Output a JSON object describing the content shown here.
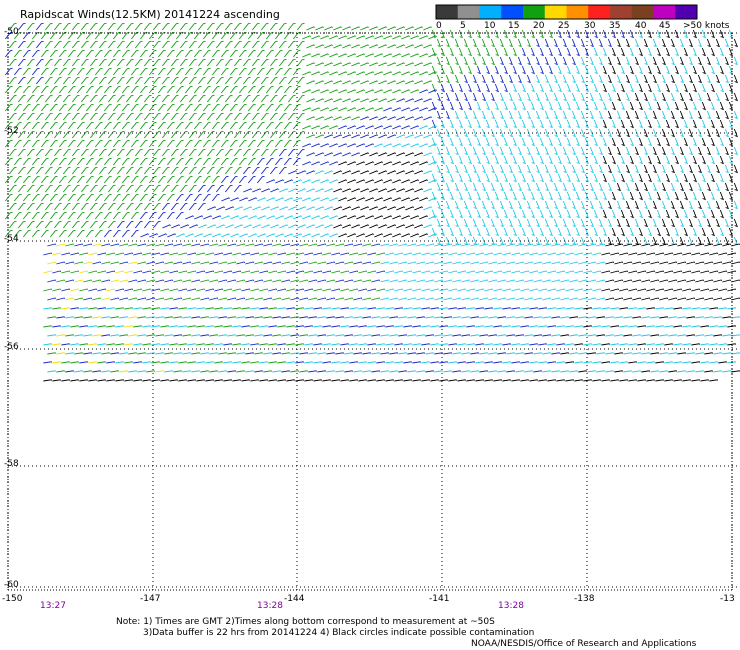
{
  "title": "Rapidscat Winds(12.5KM) 20141224 ascending",
  "legend": {
    "labels": [
      "0",
      "5",
      "10",
      "15",
      "20",
      "25",
      "30",
      "35",
      "40",
      "45",
      ">50 knots"
    ],
    "colors": [
      "#3a3a3a",
      "#909090",
      "#00b0ff",
      "#0050ff",
      "#10a010",
      "#ffd800",
      "#ff9000",
      "#ff2020",
      "#a04030",
      "#7a4020",
      "#c000c0",
      "#5000b0"
    ]
  },
  "lat_labels": [
    "-50",
    "-52",
    "-54",
    "-56",
    "-58",
    "-60"
  ],
  "lon_labels": [
    "-150",
    "-147",
    "-144",
    "-141",
    "-138",
    "-13"
  ],
  "times": [
    "13:27",
    "13:28",
    "13:28"
  ],
  "time_color": "#8000a0",
  "notes": [
    "Note: 1) Times are GMT 2)Times along bottom correspond to measurement at ~50S",
    "3)Data buffer is 22 hrs from 20141224 4) Black circles indicate possible contamination",
    "NOAA/NESDIS/Office of Research and Applications"
  ],
  "barb_colors": {
    "calm": "#000000",
    "cyan": "#1ec8e6",
    "blue": "#1428c8",
    "green": "#14a014",
    "yellow": "#f0e000"
  }
}
